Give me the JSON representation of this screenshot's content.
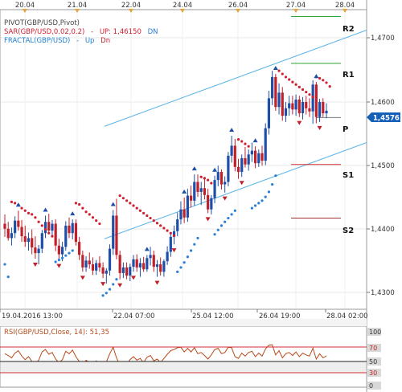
{
  "top_axis": {
    "dates": [
      "20.04",
      "21.04",
      "22.04",
      "24.04",
      "26.04",
      "27.04",
      "28.04"
    ]
  },
  "legend": {
    "pivot": "PIVOT(GBP/USD,Pivot)",
    "sar_prefix": "SAR(GBP/USD,0.02,0.2)",
    "sar_up": "UP: 1,46150",
    "sar_dn": "DN",
    "fractal_prefix": "FRACTAL(GBP/USD)",
    "fractal_up": "Up",
    "fractal_dn": "Dn"
  },
  "pivot_labels": [
    "R2",
    "R1",
    "P",
    "S1",
    "S2"
  ],
  "price_axis": {
    "ticks": [
      "1,4700",
      "1,4600",
      "1,4500",
      "1,4400",
      "1,4300"
    ],
    "current_price": "1,45761"
  },
  "time_axis": {
    "labels": [
      "19.04.2016 13:00",
      "22.04 07:00",
      "25.04 12:00",
      "26.04 19:00",
      "28.04 02:00"
    ]
  },
  "rsi": {
    "legend": "RSI(GBP/USD,Close, 14): 51,35",
    "levels": [
      "100",
      "70",
      "50",
      "30",
      "0"
    ]
  },
  "colors": {
    "up_candle": "#1e4fa8",
    "down_candle": "#c0202a",
    "sar": "#d02030",
    "sar_support": "#2a7fd6",
    "channel": "#5ab4e8",
    "pivot_r": "#2ea52e",
    "pivot_s": "#a03030",
    "rsi_line": "#b54a1a",
    "price_badge": "#1560b8"
  },
  "chart_data": {
    "type": "candlestick",
    "symbol": "GBP/USD",
    "ylim": [
      1.4258,
      1.4738
    ],
    "pivot_levels": {
      "R2": 1.4727,
      "R1": 1.4652,
      "P": 1.4565,
      "S1": 1.449,
      "S2": 1.4404
    },
    "current_price": 1.45761,
    "sar_up": 1.4615,
    "rsi_last": 51.35,
    "candles": [
      [
        1.4395,
        1.441,
        1.4374,
        1.4387
      ],
      [
        1.4387,
        1.4398,
        1.4368,
        1.4372
      ],
      [
        1.4372,
        1.4389,
        1.436,
        1.438
      ],
      [
        1.438,
        1.4407,
        1.4372,
        1.44
      ],
      [
        1.44,
        1.4416,
        1.4384,
        1.439
      ],
      [
        1.439,
        1.4401,
        1.4366,
        1.4375
      ],
      [
        1.4375,
        1.4392,
        1.4358,
        1.4366
      ],
      [
        1.4366,
        1.4381,
        1.4352,
        1.4372
      ],
      [
        1.4372,
        1.4386,
        1.4346,
        1.4357
      ],
      [
        1.4357,
        1.4375,
        1.4339,
        1.4348
      ],
      [
        1.4348,
        1.4361,
        1.433,
        1.4355
      ],
      [
        1.4355,
        1.4385,
        1.4348,
        1.438
      ],
      [
        1.438,
        1.4408,
        1.4372,
        1.4398
      ],
      [
        1.4398,
        1.4411,
        1.438,
        1.4384
      ],
      [
        1.4384,
        1.4401,
        1.4376,
        1.4395
      ],
      [
        1.4395,
        1.4402,
        1.4351,
        1.436
      ],
      [
        1.436,
        1.4371,
        1.4337,
        1.4346
      ],
      [
        1.4346,
        1.4366,
        1.4335,
        1.4358
      ],
      [
        1.4358,
        1.4399,
        1.4352,
        1.4392
      ],
      [
        1.4392,
        1.4405,
        1.4372,
        1.438
      ],
      [
        1.438,
        1.4402,
        1.437,
        1.4396
      ],
      [
        1.4396,
        1.4402,
        1.436,
        1.4366
      ],
      [
        1.4366,
        1.4374,
        1.4337,
        1.4345
      ],
      [
        1.4345,
        1.4352,
        1.4318,
        1.4325
      ],
      [
        1.4325,
        1.4343,
        1.4318,
        1.4336
      ],
      [
        1.4336,
        1.4349,
        1.4323,
        1.433
      ],
      [
        1.433,
        1.4341,
        1.4313,
        1.432
      ],
      [
        1.432,
        1.4337,
        1.4313,
        1.4332
      ],
      [
        1.4332,
        1.4343,
        1.4318,
        1.4325
      ],
      [
        1.4325,
        1.4333,
        1.4308,
        1.4315
      ],
      [
        1.4315,
        1.4324,
        1.4299,
        1.432
      ],
      [
        1.432,
        1.4362,
        1.4312,
        1.4355
      ],
      [
        1.4355,
        1.4417,
        1.4345,
        1.4408
      ],
      [
        1.4408,
        1.4435,
        1.4338,
        1.4345
      ],
      [
        1.4345,
        1.4352,
        1.4306,
        1.4316
      ],
      [
        1.4316,
        1.4333,
        1.4308,
        1.4325
      ],
      [
        1.4325,
        1.4333,
        1.4306,
        1.4312
      ],
      [
        1.4312,
        1.4331,
        1.4303,
        1.4326
      ],
      [
        1.4326,
        1.4345,
        1.4318,
        1.4338
      ],
      [
        1.4338,
        1.4346,
        1.4318,
        1.4325
      ],
      [
        1.4325,
        1.434,
        1.431,
        1.4332
      ],
      [
        1.4332,
        1.4342,
        1.4318,
        1.4322
      ],
      [
        1.4322,
        1.4345,
        1.4318,
        1.434
      ],
      [
        1.434,
        1.4358,
        1.4328,
        1.4345
      ],
      [
        1.4345,
        1.4352,
        1.4318,
        1.4326
      ],
      [
        1.4326,
        1.4337,
        1.431,
        1.433
      ],
      [
        1.433,
        1.4341,
        1.4312,
        1.4318
      ],
      [
        1.4318,
        1.4338,
        1.431,
        1.4335
      ],
      [
        1.4335,
        1.4359,
        1.4329,
        1.435
      ],
      [
        1.435,
        1.4381,
        1.4342,
        1.4374
      ],
      [
        1.4374,
        1.4392,
        1.4362,
        1.4383
      ],
      [
        1.4383,
        1.4413,
        1.4375,
        1.4402
      ],
      [
        1.4402,
        1.4431,
        1.4394,
        1.4418
      ],
      [
        1.4418,
        1.4437,
        1.4396,
        1.4405
      ],
      [
        1.4405,
        1.4451,
        1.4398,
        1.444
      ],
      [
        1.444,
        1.4456,
        1.4421,
        1.4432
      ],
      [
        1.4432,
        1.4474,
        1.4424,
        1.4462
      ],
      [
        1.4462,
        1.4474,
        1.4438,
        1.4446
      ],
      [
        1.4446,
        1.4462,
        1.4425,
        1.4452
      ],
      [
        1.4452,
        1.447,
        1.4434,
        1.4441
      ],
      [
        1.4441,
        1.4451,
        1.4412,
        1.4418
      ],
      [
        1.4418,
        1.4441,
        1.441,
        1.4436
      ],
      [
        1.4436,
        1.4472,
        1.4428,
        1.4465
      ],
      [
        1.4465,
        1.4488,
        1.4455,
        1.4478
      ],
      [
        1.4478,
        1.4482,
        1.445,
        1.4458
      ],
      [
        1.4458,
        1.4471,
        1.4445,
        1.4462
      ],
      [
        1.4462,
        1.451,
        1.4455,
        1.4504
      ],
      [
        1.4504,
        1.4536,
        1.4493,
        1.452
      ],
      [
        1.452,
        1.4531,
        1.4479,
        1.4486
      ],
      [
        1.4486,
        1.4499,
        1.4467,
        1.4478
      ],
      [
        1.4478,
        1.4506,
        1.447,
        1.45
      ],
      [
        1.45,
        1.4518,
        1.4485,
        1.449
      ],
      [
        1.449,
        1.4514,
        1.448,
        1.4506
      ],
      [
        1.4506,
        1.4525,
        1.4494,
        1.4512
      ],
      [
        1.4512,
        1.4519,
        1.4484,
        1.4492
      ],
      [
        1.4492,
        1.4514,
        1.4486,
        1.4508
      ],
      [
        1.4508,
        1.452,
        1.4488,
        1.4496
      ],
      [
        1.4496,
        1.4556,
        1.4489,
        1.4548
      ],
      [
        1.4548,
        1.4608,
        1.4538,
        1.4596
      ],
      [
        1.4596,
        1.464,
        1.4585,
        1.463
      ],
      [
        1.463,
        1.4635,
        1.4576,
        1.4582
      ],
      [
        1.4582,
        1.462,
        1.457,
        1.4605
      ],
      [
        1.4605,
        1.4614,
        1.456,
        1.4568
      ],
      [
        1.4568,
        1.459,
        1.4558,
        1.458
      ],
      [
        1.458,
        1.46,
        1.4568,
        1.4588
      ],
      [
        1.4588,
        1.46,
        1.457,
        1.4578
      ],
      [
        1.4578,
        1.4602,
        1.4568,
        1.4594
      ],
      [
        1.4594,
        1.46,
        1.4566,
        1.4572
      ],
      [
        1.4572,
        1.4598,
        1.4562,
        1.459
      ],
      [
        1.459,
        1.46,
        1.457,
        1.458
      ],
      [
        1.458,
        1.4596,
        1.4566,
        1.4575
      ],
      [
        1.4575,
        1.4625,
        1.4555,
        1.4618
      ],
      [
        1.4618,
        1.4622,
        1.4556,
        1.4566
      ],
      [
        1.4566,
        1.4595,
        1.4558,
        1.459
      ],
      [
        1.459,
        1.4596,
        1.4566,
        1.4572
      ],
      [
        1.4572,
        1.4588,
        1.4564,
        1.4576
      ]
    ],
    "rsi_values": [
      55,
      52,
      48,
      56,
      60,
      51,
      45,
      50,
      42,
      38,
      44,
      58,
      62,
      54,
      57,
      46,
      40,
      45,
      59,
      55,
      61,
      50,
      42,
      36,
      44,
      40,
      35,
      43,
      38,
      33,
      41,
      55,
      66,
      48,
      36,
      42,
      37,
      45,
      50,
      44,
      47,
      40,
      49,
      52,
      43,
      46,
      40,
      47,
      54,
      60,
      62,
      65,
      66,
      58,
      64,
      58,
      65,
      55,
      57,
      52,
      46,
      53,
      62,
      64,
      55,
      57,
      66,
      65,
      50,
      47,
      56,
      51,
      57,
      59,
      50,
      56,
      51,
      63,
      69,
      70,
      53,
      60,
      48,
      55,
      57,
      52,
      58,
      50,
      56,
      53,
      51,
      64,
      46,
      55,
      48,
      51.35
    ],
    "sar_dn_points": [
      [
        2,
        1.443
      ],
      [
        3,
        1.4428
      ],
      [
        4,
        1.4425
      ],
      [
        5,
        1.442
      ],
      [
        6,
        1.4416
      ],
      [
        7,
        1.4412
      ],
      [
        8,
        1.441
      ],
      [
        9,
        1.4405
      ],
      [
        10,
        1.4398
      ],
      [
        11,
        1.4392
      ],
      [
        12,
        1.4386
      ],
      [
        13,
        1.438
      ],
      [
        14,
        1.4375
      ],
      [
        21,
        1.4428
      ],
      [
        22,
        1.4426
      ],
      [
        23,
        1.442
      ],
      [
        24,
        1.4414
      ],
      [
        25,
        1.441
      ],
      [
        26,
        1.4405
      ],
      [
        27,
        1.44
      ],
      [
        28,
        1.4395
      ],
      [
        34,
        1.444
      ],
      [
        35,
        1.4436
      ],
      [
        36,
        1.4432
      ],
      [
        37,
        1.4428
      ],
      [
        38,
        1.4424
      ],
      [
        39,
        1.442
      ],
      [
        40,
        1.4416
      ],
      [
        41,
        1.4412
      ],
      [
        42,
        1.4408
      ],
      [
        43,
        1.4404
      ],
      [
        44,
        1.44
      ],
      [
        45,
        1.4396
      ],
      [
        46,
        1.4392
      ],
      [
        47,
        1.4388
      ],
      [
        48,
        1.4384
      ],
      [
        49,
        1.438
      ],
      [
        50,
        1.4376
      ],
      [
        58,
        1.447
      ],
      [
        59,
        1.4468
      ],
      [
        60,
        1.4465
      ],
      [
        61,
        1.446
      ],
      [
        69,
        1.453
      ],
      [
        70,
        1.4527
      ],
      [
        71,
        1.4523
      ],
      [
        72,
        1.4519
      ],
      [
        81,
        1.464
      ],
      [
        82,
        1.4635
      ],
      [
        83,
        1.463
      ],
      [
        84,
        1.4626
      ],
      [
        85,
        1.4622
      ],
      [
        86,
        1.4618
      ],
      [
        87,
        1.4614
      ],
      [
        88,
        1.461
      ],
      [
        89,
        1.4606
      ],
      [
        90,
        1.4602
      ],
      [
        91,
        1.4598
      ],
      [
        92,
        1.463
      ],
      [
        93,
        1.4628
      ],
      [
        94,
        1.4625
      ],
      [
        95,
        1.4621
      ],
      [
        96,
        1.4615
      ]
    ],
    "sar_up_points": [
      [
        0,
        1.433
      ],
      [
        1,
        1.431
      ],
      [
        15,
        1.4334
      ],
      [
        16,
        1.4337
      ],
      [
        17,
        1.434
      ],
      [
        18,
        1.4344
      ],
      [
        19,
        1.4348
      ],
      [
        20,
        1.4352
      ],
      [
        29,
        1.428
      ],
      [
        30,
        1.4284
      ],
      [
        31,
        1.429
      ],
      [
        32,
        1.4298
      ],
      [
        33,
        1.4306
      ],
      [
        51,
        1.4318
      ],
      [
        52,
        1.4325
      ],
      [
        53,
        1.4333
      ],
      [
        54,
        1.4342
      ],
      [
        55,
        1.4352
      ],
      [
        56,
        1.4362
      ],
      [
        57,
        1.4372
      ],
      [
        62,
        1.4378
      ],
      [
        63,
        1.4385
      ],
      [
        64,
        1.4392
      ],
      [
        65,
        1.4398
      ],
      [
        66,
        1.4404
      ],
      [
        67,
        1.441
      ],
      [
        68,
        1.4416
      ],
      [
        73,
        1.442
      ],
      [
        74,
        1.4424
      ],
      [
        75,
        1.4428
      ],
      [
        76,
        1.4432
      ],
      [
        77,
        1.4438
      ],
      [
        78,
        1.4446
      ],
      [
        79,
        1.4458
      ],
      [
        80,
        1.4472
      ]
    ],
    "fractal_up_idx": [
      4,
      12,
      20,
      32,
      42,
      53,
      56,
      62,
      67,
      74,
      80,
      92
    ],
    "fractal_dn_idx": [
      9,
      16,
      23,
      29,
      34,
      38,
      45,
      50,
      60,
      65,
      70,
      87,
      93
    ]
  }
}
